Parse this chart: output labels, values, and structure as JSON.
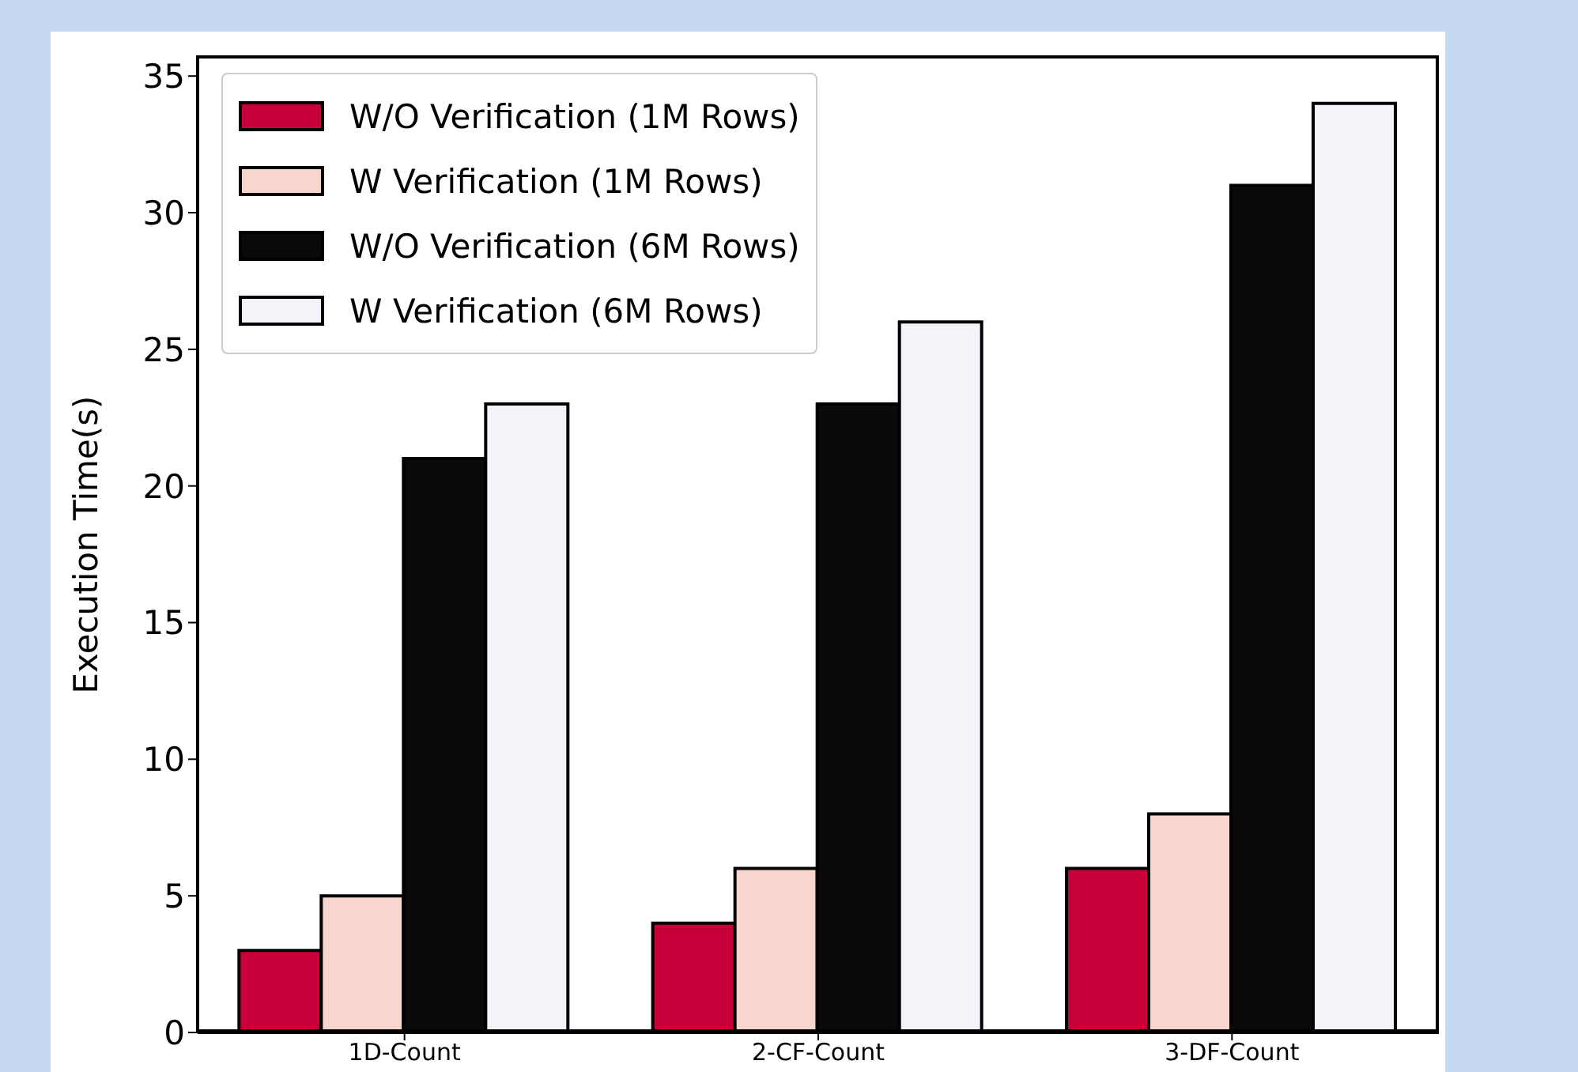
{
  "chart_data": {
    "type": "bar",
    "ylabel": "Execution Time(s)",
    "categories": [
      "1D-Count",
      "2-CF-Count",
      "3-DF-Count"
    ],
    "series": [
      {
        "name": "W/O Verification (1M Rows)",
        "color": "#c8003a",
        "values": [
          3,
          4,
          6
        ]
      },
      {
        "name": "W Verification (1M Rows)",
        "color": "#f8d5cd",
        "values": [
          5,
          6,
          8
        ]
      },
      {
        "name": "W/O Verification (6M Rows)",
        "color": "#0a0a0a",
        "values": [
          21,
          23,
          31
        ]
      },
      {
        "name": "W Verification (6M Rows)",
        "color": "#f4f3fa",
        "values": [
          23,
          26,
          34
        ]
      }
    ],
    "ylim": [
      0,
      35.7
    ],
    "yticks": [
      0,
      5,
      10,
      15,
      20,
      25,
      30,
      35
    ],
    "grid": false,
    "legend": "top left"
  }
}
